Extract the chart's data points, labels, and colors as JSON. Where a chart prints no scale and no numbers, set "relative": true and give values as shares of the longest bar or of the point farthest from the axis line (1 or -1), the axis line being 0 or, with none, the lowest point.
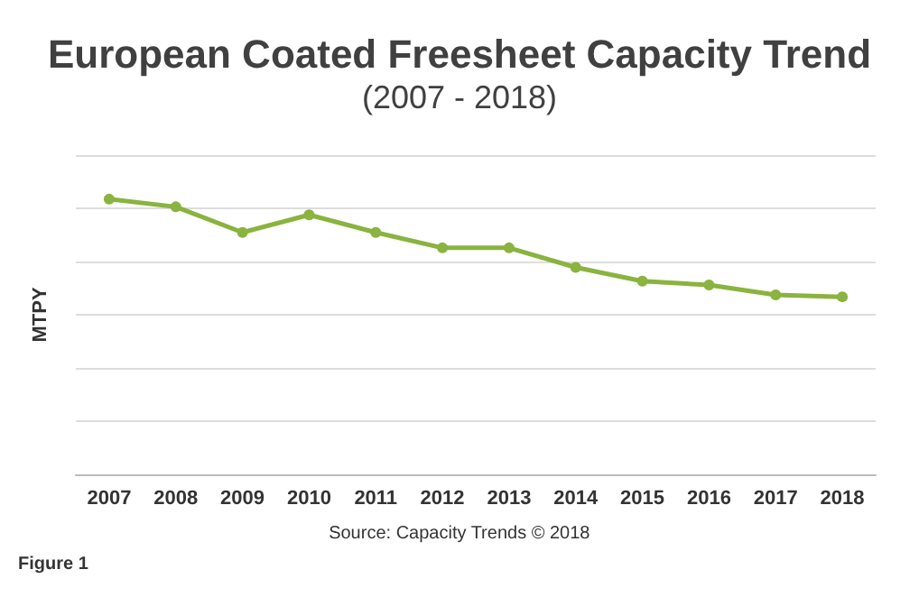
{
  "chart_data": {
    "type": "line",
    "title": "European Coated Freesheet Capacity Trend",
    "subtitle": "(2007 - 2018)",
    "ylabel": "MTPY",
    "categories": [
      "2007",
      "2008",
      "2009",
      "2010",
      "2011",
      "2012",
      "2013",
      "2014",
      "2015",
      "2016",
      "2017",
      "2018"
    ],
    "series": [
      {
        "color": "#8ab33f",
        "values": [
          1,
          0.972,
          0.879,
          0.943,
          0.879,
          0.823,
          0.823,
          0.752,
          0.702,
          0.688,
          0.652,
          0.645
        ]
      }
    ],
    "relative": true,
    "grid": "y",
    "marker": "circle",
    "line_style": "solid",
    "annotations": [
      "Source: Capacity Trends © 2018",
      "Figure 1"
    ]
  }
}
